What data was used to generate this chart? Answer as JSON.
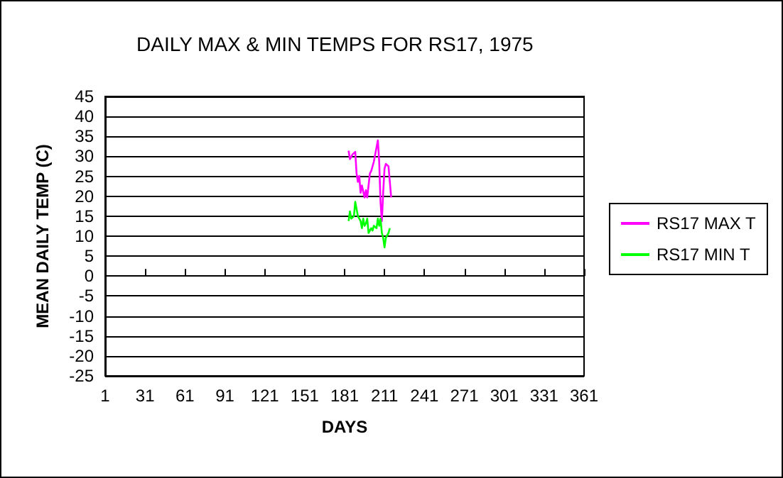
{
  "chart_data": {
    "type": "line",
    "title": "DAILY MAX & MIN TEMPS FOR RS17, 1975",
    "xlabel": "DAYS",
    "ylabel": "MEAN DAILY TEMP (C)",
    "xlim": [
      1,
      361
    ],
    "xticks": [
      1,
      31,
      61,
      91,
      121,
      151,
      181,
      211,
      241,
      271,
      301,
      331,
      361
    ],
    "ylim": [
      -25,
      45
    ],
    "yticks": [
      -25,
      -20,
      -15,
      -10,
      -5,
      0,
      5,
      10,
      15,
      20,
      25,
      30,
      35,
      40,
      45
    ],
    "grid": "y",
    "legend": "right",
    "marker": "none",
    "line_style": "solid",
    "series": [
      {
        "name": "RS17 MAX T",
        "color": "#ff00ff",
        "x": [
          184,
          185,
          187,
          189,
          190,
          191,
          192,
          193,
          194,
          196,
          197,
          198,
          200,
          201,
          203,
          204,
          206,
          207,
          208,
          209,
          210,
          211,
          212,
          214,
          216
        ],
        "values": [
          31.4,
          29.3,
          30.5,
          31.1,
          25.7,
          23.6,
          25.1,
          20.9,
          22.7,
          19.7,
          21.5,
          19.7,
          25.7,
          26.3,
          28.7,
          30.5,
          34.0,
          28.7,
          18.6,
          13.8,
          20.9,
          26.9,
          28.1,
          27.5,
          19.7
        ]
      },
      {
        "name": "RS17 MIN T",
        "color": "#00ff00",
        "x": [
          184,
          185,
          186,
          188,
          189,
          190,
          191,
          193,
          194,
          195,
          196,
          197,
          198,
          199,
          201,
          202,
          203,
          205,
          206,
          207,
          208,
          209,
          210,
          211,
          212,
          214,
          215
        ],
        "values": [
          13.8,
          16.2,
          14.4,
          15.0,
          18.6,
          16.8,
          15.0,
          13.8,
          12.0,
          14.4,
          12.6,
          13.2,
          14.4,
          10.8,
          12.0,
          11.4,
          12.6,
          12.0,
          14.4,
          12.6,
          14.4,
          10.8,
          9.6,
          7.2,
          9.6,
          10.8,
          12.0
        ]
      }
    ]
  }
}
